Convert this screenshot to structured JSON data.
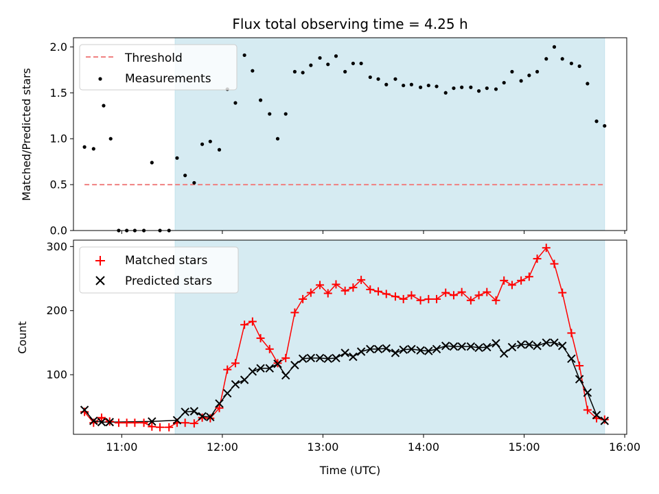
{
  "chart_data": [
    {
      "type": "scatter",
      "title": "Flux total observing time = 4.25 h",
      "xlabel": "",
      "ylabel": "Matched/Predicted stars",
      "x_unit": "hours UTC",
      "xlim": [
        10.52,
        16.02
      ],
      "ylim": [
        0,
        2.1
      ],
      "yticks": [
        0.0,
        0.5,
        1.0,
        1.5,
        2.0
      ],
      "ytick_labels": [
        "0.0",
        "0.5",
        "1.0",
        "1.5",
        "2.0"
      ],
      "xticks": [
        11,
        12,
        13,
        14,
        15,
        16
      ],
      "shaded_span": [
        11.53,
        15.8
      ],
      "legend_position": "top-left",
      "threshold": {
        "name": "Threshold",
        "y": 0.5,
        "x_range": [
          10.63,
          15.8
        ],
        "color": "#f08080"
      },
      "series": [
        {
          "name": "Measurements",
          "color": "#000000",
          "marker": "dot",
          "x": [
            10.63,
            10.72,
            10.82,
            10.89,
            10.97,
            11.05,
            11.13,
            11.22,
            11.3,
            11.38,
            11.47,
            11.55,
            11.63,
            11.72,
            11.8,
            11.88,
            11.97,
            12.05,
            12.13,
            12.22,
            12.3,
            12.38,
            12.47,
            12.55,
            12.63,
            12.72,
            12.8,
            12.88,
            12.97,
            13.05,
            13.13,
            13.22,
            13.3,
            13.38,
            13.47,
            13.55,
            13.63,
            13.72,
            13.8,
            13.88,
            13.97,
            14.05,
            14.13,
            14.22,
            14.3,
            14.38,
            14.47,
            14.55,
            14.63,
            14.72,
            14.8,
            14.88,
            14.97,
            15.05,
            15.13,
            15.22,
            15.3,
            15.38,
            15.47,
            15.55,
            15.63,
            15.72,
            15.8
          ],
          "y": [
            0.91,
            0.89,
            1.36,
            1.0,
            0.0,
            0.0,
            0.0,
            0.0,
            0.74,
            0.0,
            0.0,
            0.79,
            0.6,
            0.52,
            0.94,
            0.97,
            0.88,
            1.54,
            1.39,
            1.91,
            1.74,
            1.42,
            1.27,
            1.0,
            1.27,
            1.73,
            1.72,
            1.8,
            1.88,
            1.81,
            1.9,
            1.73,
            1.82,
            1.82,
            1.67,
            1.65,
            1.59,
            1.65,
            1.58,
            1.59,
            1.56,
            1.58,
            1.57,
            1.5,
            1.55,
            1.56,
            1.56,
            1.52,
            1.55,
            1.54,
            1.61,
            1.73,
            1.63,
            1.69,
            1.73,
            1.87,
            2.0,
            1.87,
            1.82,
            1.79,
            1.6,
            1.19,
            1.14
          ]
        }
      ]
    },
    {
      "type": "line",
      "title": "",
      "xlabel": "Time (UTC)",
      "ylabel": "Count",
      "x_unit": "hours UTC",
      "xlim": [
        10.52,
        16.02
      ],
      "ylim": [
        7,
        310
      ],
      "yticks": [
        100,
        200,
        300
      ],
      "ytick_labels": [
        "100",
        "200",
        "300"
      ],
      "xticks": [
        11,
        12,
        13,
        14,
        15,
        16
      ],
      "xtick_labels": [
        "11:00",
        "12:00",
        "13:00",
        "14:00",
        "15:00",
        "16:00"
      ],
      "shaded_span": [
        11.53,
        15.8
      ],
      "legend_position": "top-left",
      "series": [
        {
          "name": "Matched stars",
          "color": "#ff0000",
          "marker": "plus",
          "x": [
            10.63,
            10.72,
            10.8,
            10.88,
            10.97,
            11.05,
            11.13,
            11.22,
            11.3,
            11.38,
            11.47,
            11.55,
            11.63,
            11.72,
            11.8,
            11.88,
            11.97,
            12.05,
            12.13,
            12.22,
            12.3,
            12.38,
            12.47,
            12.55,
            12.63,
            12.72,
            12.8,
            12.88,
            12.97,
            13.05,
            13.13,
            13.22,
            13.3,
            13.38,
            13.47,
            13.55,
            13.63,
            13.72,
            13.8,
            13.88,
            13.97,
            14.05,
            14.13,
            14.22,
            14.3,
            14.38,
            14.47,
            14.55,
            14.63,
            14.72,
            14.8,
            14.88,
            14.97,
            15.05,
            15.13,
            15.22,
            15.3,
            15.38,
            15.47,
            15.55,
            15.63,
            15.72,
            15.8
          ],
          "y": [
            42,
            25,
            33,
            27,
            25,
            25,
            25,
            25,
            19,
            18,
            18,
            25,
            25,
            24,
            33,
            32,
            48,
            108,
            118,
            178,
            183,
            157,
            140,
            118,
            126,
            197,
            218,
            228,
            240,
            227,
            241,
            231,
            236,
            248,
            233,
            230,
            226,
            222,
            218,
            224,
            216,
            218,
            218,
            228,
            224,
            229,
            216,
            224,
            229,
            216,
            247,
            240,
            247,
            253,
            281,
            298,
            273,
            228,
            165,
            114,
            45,
            32,
            30
          ]
        },
        {
          "name": "Predicted stars",
          "color": "#000000",
          "marker": "x",
          "x": [
            10.63,
            10.72,
            10.8,
            10.88,
            11.3,
            11.55,
            11.63,
            11.72,
            11.8,
            11.88,
            11.97,
            12.05,
            12.13,
            12.22,
            12.3,
            12.38,
            12.47,
            12.55,
            12.63,
            12.72,
            12.8,
            12.88,
            12.97,
            13.05,
            13.13,
            13.22,
            13.3,
            13.38,
            13.47,
            13.55,
            13.63,
            13.72,
            13.8,
            13.88,
            13.97,
            14.05,
            14.13,
            14.22,
            14.3,
            14.38,
            14.47,
            14.55,
            14.63,
            14.72,
            14.8,
            14.88,
            14.97,
            15.05,
            15.13,
            15.22,
            15.3,
            15.38,
            15.47,
            15.55,
            15.63,
            15.72,
            15.8
          ],
          "y": [
            45,
            28,
            26,
            26,
            27,
            29,
            42,
            43,
            35,
            34,
            55,
            71,
            85,
            92,
            105,
            110,
            110,
            117,
            99,
            115,
            125,
            126,
            126,
            125,
            126,
            134,
            128,
            136,
            140,
            140,
            141,
            134,
            139,
            140,
            138,
            137,
            140,
            145,
            144,
            144,
            144,
            142,
            143,
            149,
            133,
            143,
            147,
            147,
            145,
            150,
            150,
            145,
            125,
            93,
            72,
            37,
            28
          ]
        }
      ]
    }
  ]
}
